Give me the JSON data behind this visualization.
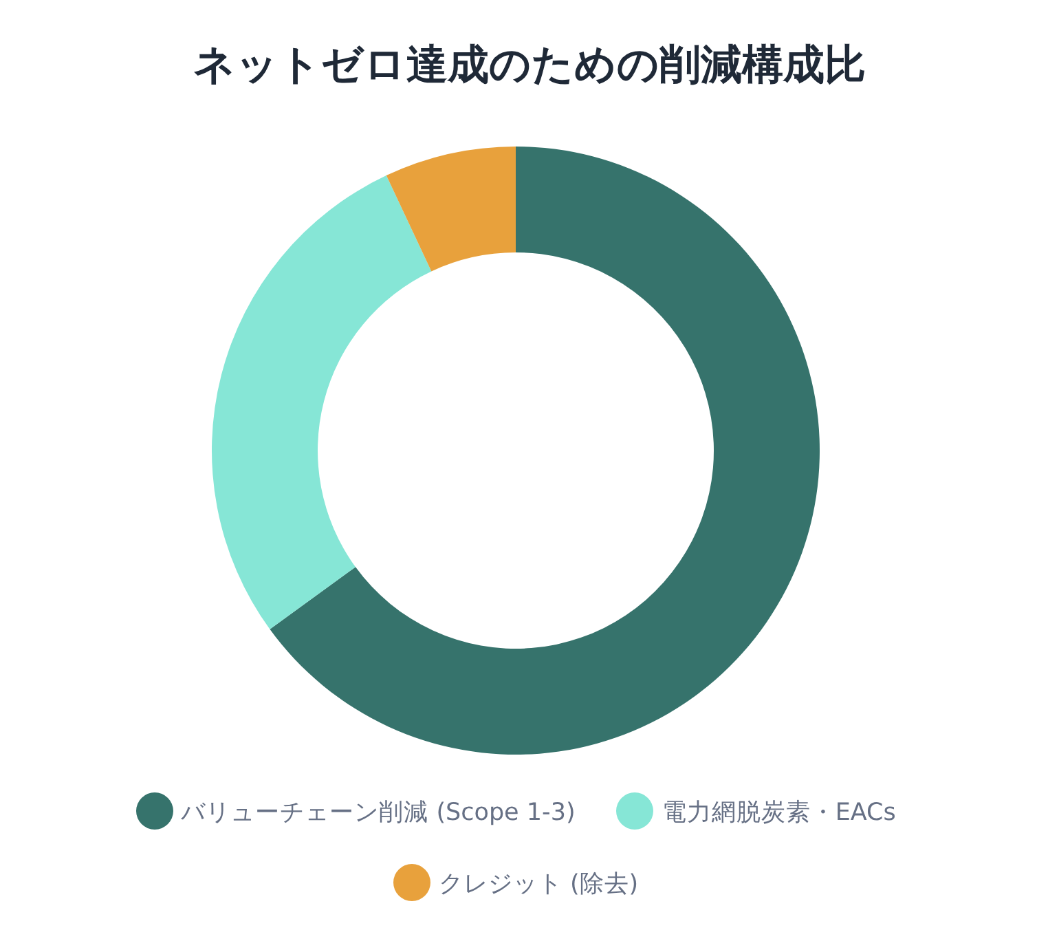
{
  "chart_data": {
    "type": "donut",
    "title": "ネットゼロ達成のための削減構成比",
    "categories": [
      "バリューチェーン削減 (Scope 1-3)",
      "電力網脱炭素・EACs",
      "クレジット (除去)"
    ],
    "values": [
      65,
      28,
      7
    ],
    "colors": [
      "#36736c",
      "#86e6d6",
      "#e8a13c"
    ],
    "legend": "bottom"
  }
}
